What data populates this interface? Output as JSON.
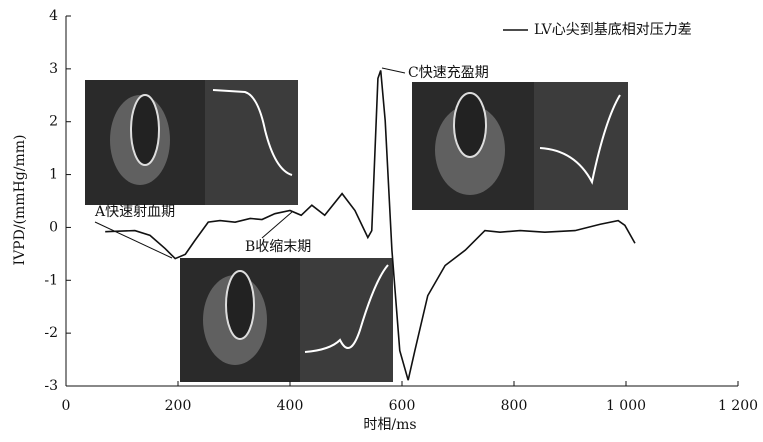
{
  "chart_data": {
    "type": "line",
    "xlabel": "时相/ms",
    "ylabel": "IVPD/(mmHg/mm)",
    "xlim": [
      0,
      1200
    ],
    "ylim": [
      -3,
      4
    ],
    "xticks": [
      0,
      200,
      400,
      600,
      800,
      {
        "value": 1000,
        "label": "1 000"
      },
      {
        "value": 1200,
        "label": "1 200"
      }
    ],
    "yticks": [
      -3,
      -2,
      -1,
      0,
      1,
      2,
      3,
      4
    ],
    "legend_position": "upper right",
    "series": [
      {
        "name": "LV心尖到基底相对压力差",
        "color": "#111111",
        "x": [
          70,
          123,
          150,
          177,
          195,
          213,
          230,
          254,
          275,
          302,
          329,
          350,
          373,
          400,
          420,
          439,
          462,
          493,
          516,
          539,
          546,
          557,
          562,
          570,
          582,
          596,
          611,
          623,
          646,
          677,
          713,
          748,
          775,
          811,
          855,
          909,
          954,
          986,
          998,
          1016
        ],
        "values": [
          -0.08,
          -0.06,
          -0.15,
          -0.4,
          -0.59,
          -0.51,
          -0.25,
          0.1,
          0.13,
          0.1,
          0.17,
          0.15,
          0.26,
          0.32,
          0.23,
          0.42,
          0.23,
          0.64,
          0.32,
          -0.19,
          -0.06,
          2.82,
          2.97,
          2.02,
          -0.43,
          -2.33,
          -2.89,
          -2.33,
          -1.29,
          -0.72,
          -0.43,
          -0.06,
          -0.09,
          -0.06,
          -0.09,
          -0.06,
          0.06,
          0.13,
          0.04,
          -0.3
        ]
      }
    ],
    "annotations": [
      "A快速射血期",
      "B收缩末期",
      "C快速充盈期"
    ]
  }
}
